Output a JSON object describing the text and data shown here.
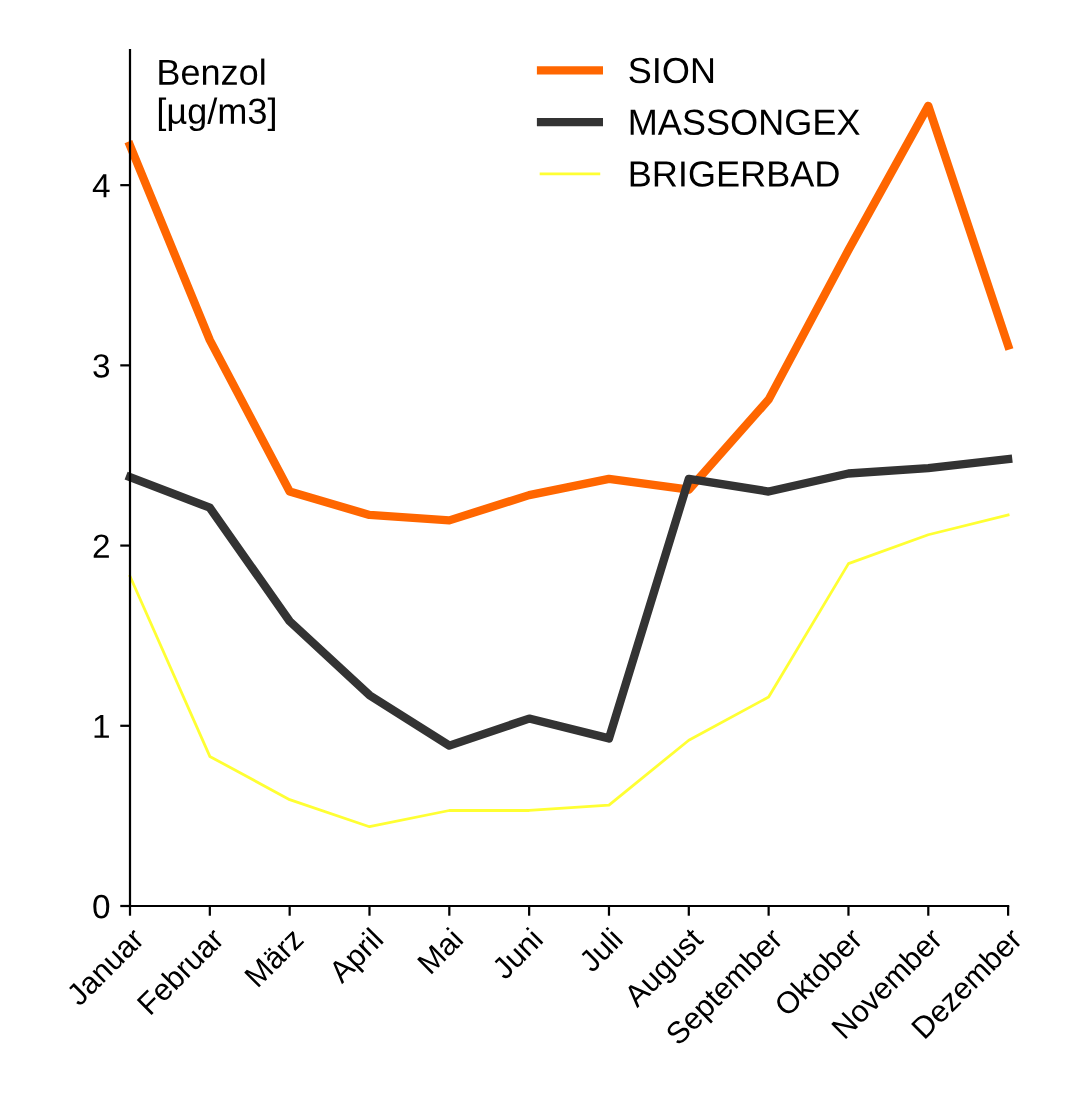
{
  "chart_data": {
    "type": "line",
    "ylabel": "Benzol\n[µg/m3]",
    "categories": [
      "Januar",
      "Februar",
      "März",
      "April",
      "Mai",
      "Juni",
      "Juli",
      "August",
      "September",
      "Oktober",
      "November",
      "Dezember"
    ],
    "series": [
      {
        "name": "SION",
        "color": "#ff6600",
        "values": [
          4.22,
          3.14,
          2.3,
          2.17,
          2.14,
          2.28,
          2.37,
          2.31,
          2.81,
          3.64,
          4.44,
          3.11
        ]
      },
      {
        "name": "MASSONGEX",
        "color": "#333333",
        "values": [
          2.38,
          2.21,
          1.58,
          1.17,
          0.89,
          1.04,
          0.93,
          2.37,
          2.3,
          2.4,
          2.43,
          2.48
        ]
      },
      {
        "name": "BRIGERBAD",
        "color": "#ffff33",
        "values": [
          1.83,
          0.83,
          0.59,
          0.44,
          0.53,
          0.53,
          0.56,
          0.92,
          1.16,
          1.9,
          2.06,
          2.17
        ]
      }
    ],
    "ylim": [
      0,
      4.75
    ],
    "yticks": [
      0,
      1,
      2,
      3,
      4
    ],
    "grid": false,
    "legend": "top",
    "marker": "none",
    "line_style": "solid"
  }
}
